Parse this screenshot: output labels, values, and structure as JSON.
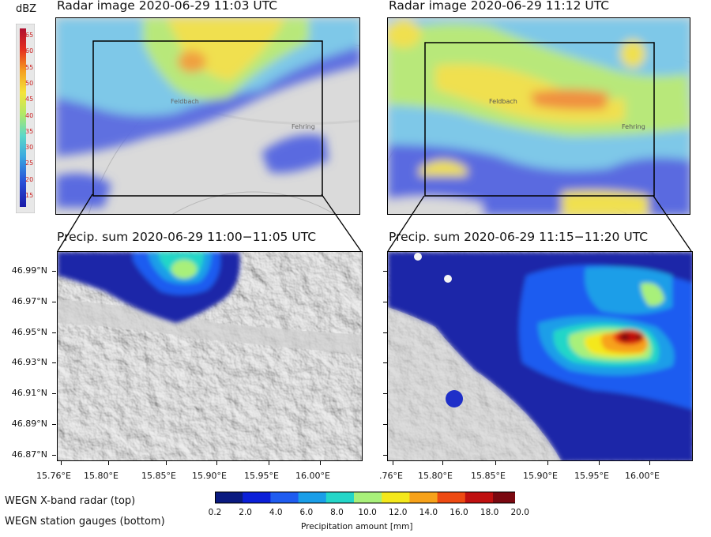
{
  "top_left": {
    "title": "Radar image 2020-06-29 11:03 UTC",
    "labels": [
      "Feldbach",
      "Fehring"
    ]
  },
  "top_right": {
    "title": "Radar image 2020-06-29 11:12 UTC",
    "labels": [
      "Feldbach",
      "Fehring"
    ]
  },
  "bottom_left": {
    "title_main": "Precip. sum 2020-06-29 11:00−11:05",
    "title_unit": "UTC"
  },
  "bottom_right": {
    "title_main": "Precip. sum 2020-06-29 11:15−11:20",
    "title_unit": "UTC"
  },
  "dbz_legend": {
    "title": "dBZ",
    "ticks": [
      "65",
      "60",
      "55",
      "50",
      "45",
      "40",
      "35",
      "30",
      "25",
      "20",
      "15"
    ]
  },
  "y_axis": {
    "labels": [
      "46.99°N",
      "46.97°N",
      "46.95°N",
      "46.93°N",
      "46.91°N",
      "46.89°N",
      "46.87°N"
    ],
    "values": [
      46.99,
      46.97,
      46.95,
      46.93,
      46.91,
      46.89,
      46.87
    ]
  },
  "x_axis_left": {
    "labels": [
      "15.76°E",
      "15.80°E",
      "15.85°E",
      "15.90°E",
      "15.95°E",
      "16.00°E"
    ]
  },
  "x_axis_right": {
    "labels": [
      ".76°E",
      "15.80°E",
      "15.85°E",
      "15.90°E",
      "15.95°E",
      "16.00°E"
    ]
  },
  "colorbar": {
    "ticks": [
      "0.2",
      "2.0",
      "4.0",
      "6.0",
      "8.0",
      "10.0",
      "12.0",
      "14.0",
      "16.0",
      "18.0",
      "20.0"
    ],
    "label": "Precipitation amount [mm]",
    "colors": [
      "#0a1a80",
      "#0b1fd8",
      "#1f5cf0",
      "#1a9ee8",
      "#24d6c8",
      "#a8f07a",
      "#f4e81c",
      "#f7a21a",
      "#ee4a12",
      "#c01010",
      "#7a0810"
    ]
  },
  "notes": {
    "radar": "WEGN X-band radar (top)",
    "gauges": "WEGN station gauges (bottom)"
  }
}
